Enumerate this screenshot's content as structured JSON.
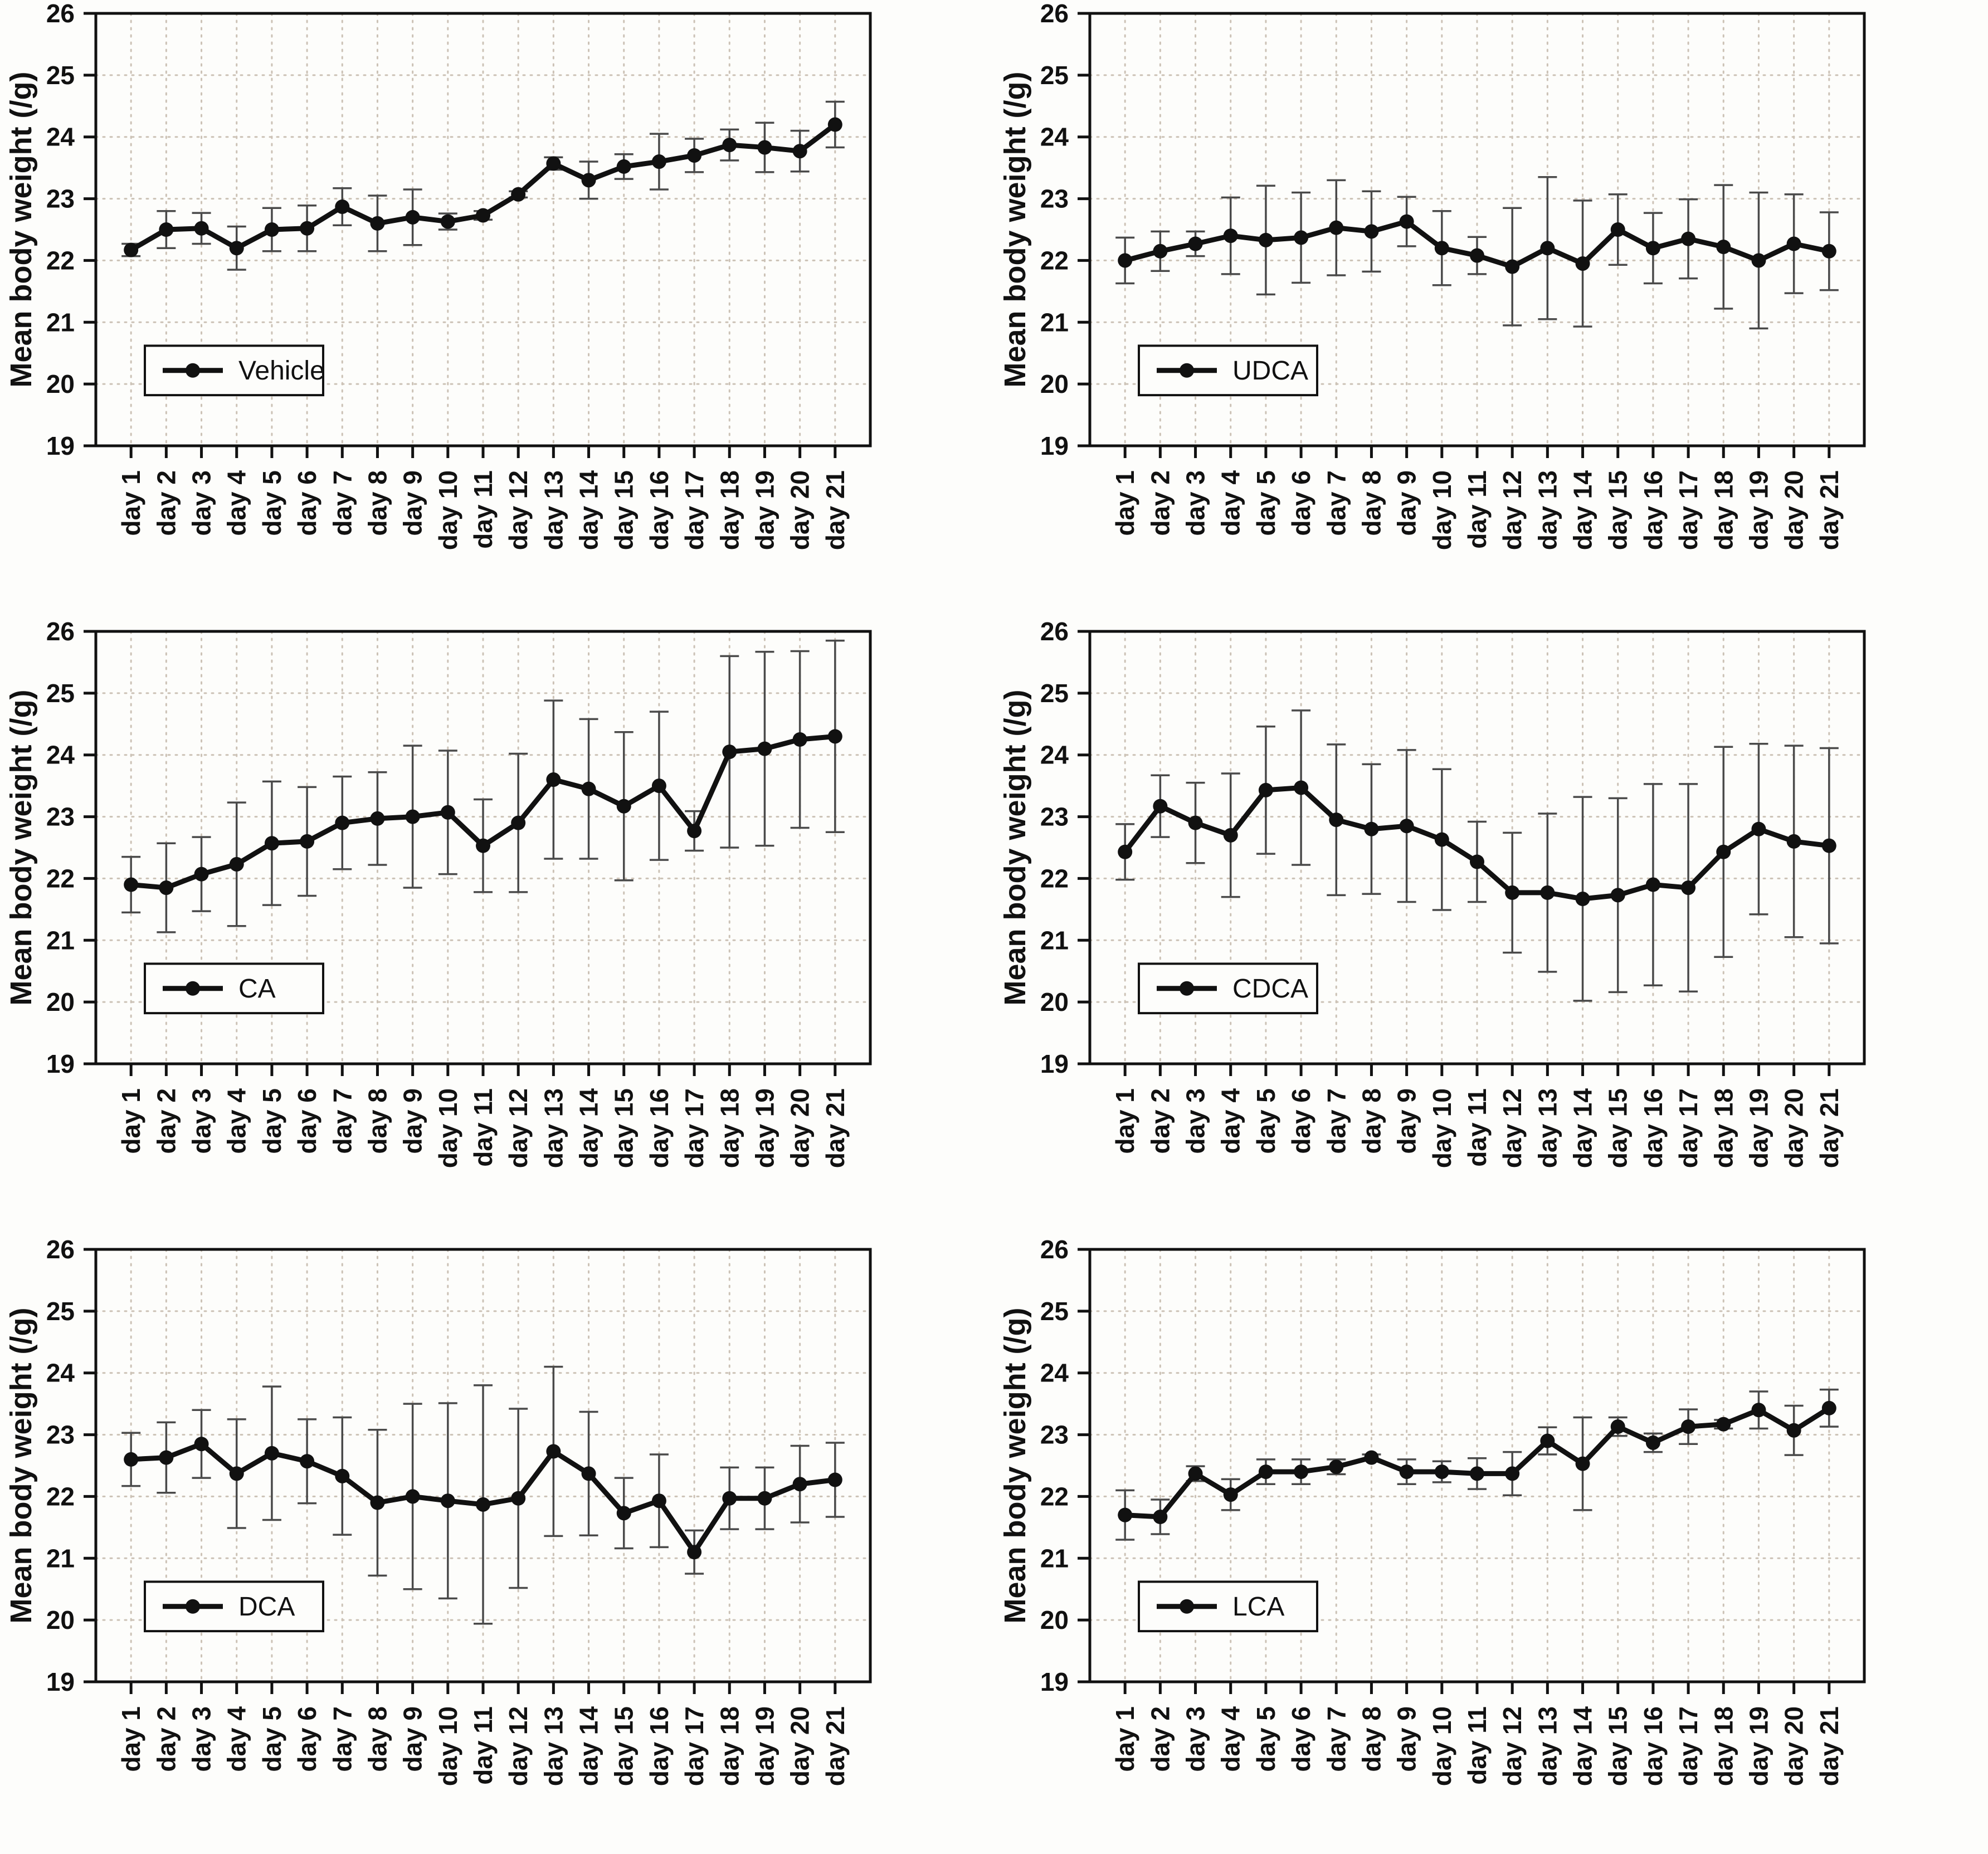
{
  "figure": {
    "layout": "2x3-grid",
    "background_color": "#fdfdfb",
    "gridline_color": "#ccc2b6",
    "line_color": "#111111",
    "error_bar_color": "#4a4a4a"
  },
  "chart_data": [
    {
      "type": "line",
      "name": "Vehicle",
      "ylabel": "Mean body weight (/g)",
      "ylim": [
        19,
        26
      ],
      "yticks": [
        19,
        20,
        21,
        22,
        23,
        24,
        25,
        26
      ],
      "grid": true,
      "legend_position": "lower-left",
      "categories": [
        "day 1",
        "day 2",
        "day 3",
        "day 4",
        "day 5",
        "day 6",
        "day 7",
        "day 8",
        "day 9",
        "day 10",
        "day 11",
        "day 12",
        "day 13",
        "day 14",
        "day 15",
        "day 16",
        "day 17",
        "day 18",
        "day 19",
        "day 20",
        "day 21"
      ],
      "values": [
        22.17,
        22.5,
        22.52,
        22.2,
        22.5,
        22.52,
        22.87,
        22.6,
        22.7,
        22.63,
        22.73,
        23.07,
        23.57,
        23.3,
        23.52,
        23.6,
        23.7,
        23.87,
        23.83,
        23.77,
        24.2
      ],
      "errors": [
        0.1,
        0.3,
        0.25,
        0.35,
        0.35,
        0.37,
        0.3,
        0.45,
        0.45,
        0.13,
        0.07,
        0.05,
        0.1,
        0.3,
        0.2,
        0.45,
        0.27,
        0.25,
        0.4,
        0.33,
        0.37
      ]
    },
    {
      "type": "line",
      "name": "UDCA",
      "ylabel": "Mean body weight (/g)",
      "ylim": [
        19,
        26
      ],
      "yticks": [
        19,
        20,
        21,
        22,
        23,
        24,
        25,
        26
      ],
      "grid": true,
      "legend_position": "lower-left",
      "categories": [
        "day 1",
        "day 2",
        "day 3",
        "day 4",
        "day 5",
        "day 6",
        "day 7",
        "day 8",
        "day 9",
        "day 10",
        "day 11",
        "day 12",
        "day 13",
        "day 14",
        "day 15",
        "day 16",
        "day 17",
        "day 18",
        "day 19",
        "day 20",
        "day 21"
      ],
      "values": [
        22.0,
        22.15,
        22.27,
        22.4,
        22.33,
        22.37,
        22.53,
        22.47,
        22.63,
        22.2,
        22.08,
        21.9,
        22.2,
        21.95,
        22.5,
        22.2,
        22.35,
        22.22,
        22.0,
        22.27,
        22.15
      ],
      "errors": [
        0.37,
        0.32,
        0.2,
        0.62,
        0.88,
        0.73,
        0.77,
        0.65,
        0.4,
        0.6,
        0.3,
        0.95,
        1.15,
        1.02,
        0.57,
        0.57,
        0.64,
        1.0,
        1.1,
        0.8,
        0.63
      ]
    },
    {
      "type": "line",
      "name": "CA",
      "ylabel": "Mean body weight (/g)",
      "ylim": [
        19,
        26
      ],
      "yticks": [
        19,
        20,
        21,
        22,
        23,
        24,
        25,
        26
      ],
      "grid": true,
      "legend_position": "lower-left",
      "categories": [
        "day 1",
        "day 2",
        "day 3",
        "day 4",
        "day 5",
        "day 6",
        "day 7",
        "day 8",
        "day 9",
        "day 10",
        "day 11",
        "day 12",
        "day 13",
        "day 14",
        "day 15",
        "day 16",
        "day 17",
        "day 18",
        "day 19",
        "day 20",
        "day 21"
      ],
      "values": [
        21.9,
        21.85,
        22.07,
        22.23,
        22.57,
        22.6,
        22.9,
        22.97,
        23.0,
        23.07,
        22.53,
        22.9,
        23.6,
        23.45,
        23.17,
        23.5,
        22.77,
        24.05,
        24.1,
        24.25,
        24.3
      ],
      "errors": [
        0.45,
        0.72,
        0.6,
        1.0,
        1.0,
        0.88,
        0.75,
        0.75,
        1.15,
        1.0,
        0.75,
        1.12,
        1.28,
        1.13,
        1.2,
        1.2,
        0.32,
        1.55,
        1.57,
        1.43,
        1.55
      ]
    },
    {
      "type": "line",
      "name": "CDCA",
      "ylabel": "Mean body weight (/g)",
      "ylim": [
        19,
        26
      ],
      "yticks": [
        19,
        20,
        21,
        22,
        23,
        24,
        25,
        26
      ],
      "grid": true,
      "legend_position": "lower-left",
      "categories": [
        "day 1",
        "day 2",
        "day 3",
        "day 4",
        "day 5",
        "day 6",
        "day 7",
        "day 8",
        "day 9",
        "day 10",
        "day 11",
        "day 12",
        "day 13",
        "day 14",
        "day 15",
        "day 16",
        "day 17",
        "day 18",
        "day 19",
        "day 20",
        "day 21"
      ],
      "values": [
        22.43,
        23.17,
        22.9,
        22.7,
        23.43,
        23.47,
        22.95,
        22.8,
        22.85,
        22.63,
        22.27,
        21.77,
        21.77,
        21.67,
        21.73,
        21.9,
        21.85,
        22.43,
        22.8,
        22.6,
        22.53
      ],
      "errors": [
        0.45,
        0.5,
        0.65,
        1.0,
        1.03,
        1.25,
        1.22,
        1.05,
        1.23,
        1.14,
        0.65,
        0.97,
        1.28,
        1.65,
        1.57,
        1.63,
        1.68,
        1.7,
        1.38,
        1.55,
        1.58
      ]
    },
    {
      "type": "line",
      "name": "DCA",
      "ylabel": "Mean body weight (/g)",
      "ylim": [
        19,
        26
      ],
      "yticks": [
        19,
        20,
        21,
        22,
        23,
        24,
        25,
        26
      ],
      "grid": true,
      "legend_position": "lower-left",
      "categories": [
        "day 1",
        "day 2",
        "day 3",
        "day 4",
        "day 5",
        "day 6",
        "day 7",
        "day 8",
        "day 9",
        "day 10",
        "day 11",
        "day 12",
        "day 13",
        "day 14",
        "day 15",
        "day 16",
        "day 17",
        "day 18",
        "day 19",
        "day 20",
        "day 21"
      ],
      "values": [
        22.6,
        22.63,
        22.85,
        22.37,
        22.7,
        22.57,
        22.33,
        21.9,
        22.0,
        21.93,
        21.87,
        21.97,
        22.73,
        22.37,
        21.73,
        21.93,
        21.1,
        21.97,
        21.97,
        22.2,
        22.27
      ],
      "errors": [
        0.43,
        0.57,
        0.55,
        0.88,
        1.08,
        0.68,
        0.95,
        1.18,
        1.5,
        1.58,
        1.93,
        1.45,
        1.37,
        1.0,
        0.57,
        0.75,
        0.35,
        0.5,
        0.5,
        0.62,
        0.6
      ]
    },
    {
      "type": "line",
      "name": "LCA",
      "ylabel": "Mean body weight (/g)",
      "ylim": [
        19,
        26
      ],
      "yticks": [
        19,
        20,
        21,
        22,
        23,
        24,
        25,
        26
      ],
      "grid": true,
      "legend_position": "lower-left",
      "categories": [
        "day 1",
        "day 2",
        "day 3",
        "day 4",
        "day 5",
        "day 6",
        "day 7",
        "day 8",
        "day 9",
        "day 10",
        "day 11",
        "day 12",
        "day 13",
        "day 14",
        "day 15",
        "day 16",
        "day 17",
        "day 18",
        "day 19",
        "day 20",
        "day 21"
      ],
      "values": [
        21.7,
        21.67,
        22.37,
        22.03,
        22.4,
        22.4,
        22.48,
        22.63,
        22.4,
        22.4,
        22.37,
        22.37,
        22.9,
        22.53,
        23.13,
        22.87,
        23.13,
        23.17,
        23.4,
        23.07,
        23.43
      ],
      "errors": [
        0.4,
        0.28,
        0.12,
        0.25,
        0.2,
        0.2,
        0.12,
        0.05,
        0.2,
        0.17,
        0.25,
        0.35,
        0.22,
        0.75,
        0.15,
        0.15,
        0.28,
        0.07,
        0.3,
        0.4,
        0.3
      ]
    }
  ]
}
